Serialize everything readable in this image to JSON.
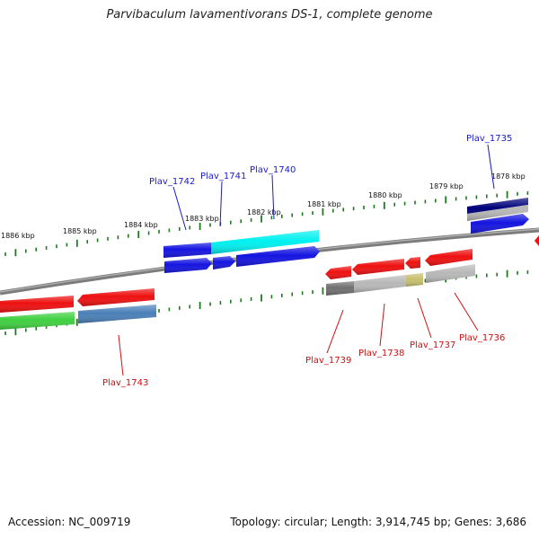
{
  "title": "Parvibaculum lavamentivorans DS-1, complete genome",
  "footer": {
    "accession": "Accession: NC_009719",
    "summary": "Topology: circular; Length: 3,914,745 bp; Genes: 3,686"
  },
  "kbp_labels": [
    "1886 kbp",
    "1885 kbp",
    "1884 kbp",
    "1883 kbp",
    "1882 kbp",
    "1881 kbp",
    "1880 kbp",
    "1879 kbp",
    "1878 kbp"
  ],
  "gene_labels_top": [
    "Plav_1742",
    "Plav_1741",
    "Plav_1740",
    "Plav_1735"
  ],
  "gene_labels_bottom": [
    "Plav_1743",
    "Plav_1739",
    "Plav_1738",
    "Plav_1737",
    "Plav_1736"
  ],
  "colors": {
    "blue": "#1010e0",
    "cyan": "#00f0f0",
    "red": "#ee1010",
    "green": "#40d040",
    "steel": "#4a80b8",
    "navy": "#00007a",
    "grey": "#b8b8b8",
    "darkgrey": "#707070",
    "olive": "#c8c070",
    "tick": "#1e7a1e",
    "label_blue": "#1a1acc",
    "label_red": "#cc1010"
  }
}
